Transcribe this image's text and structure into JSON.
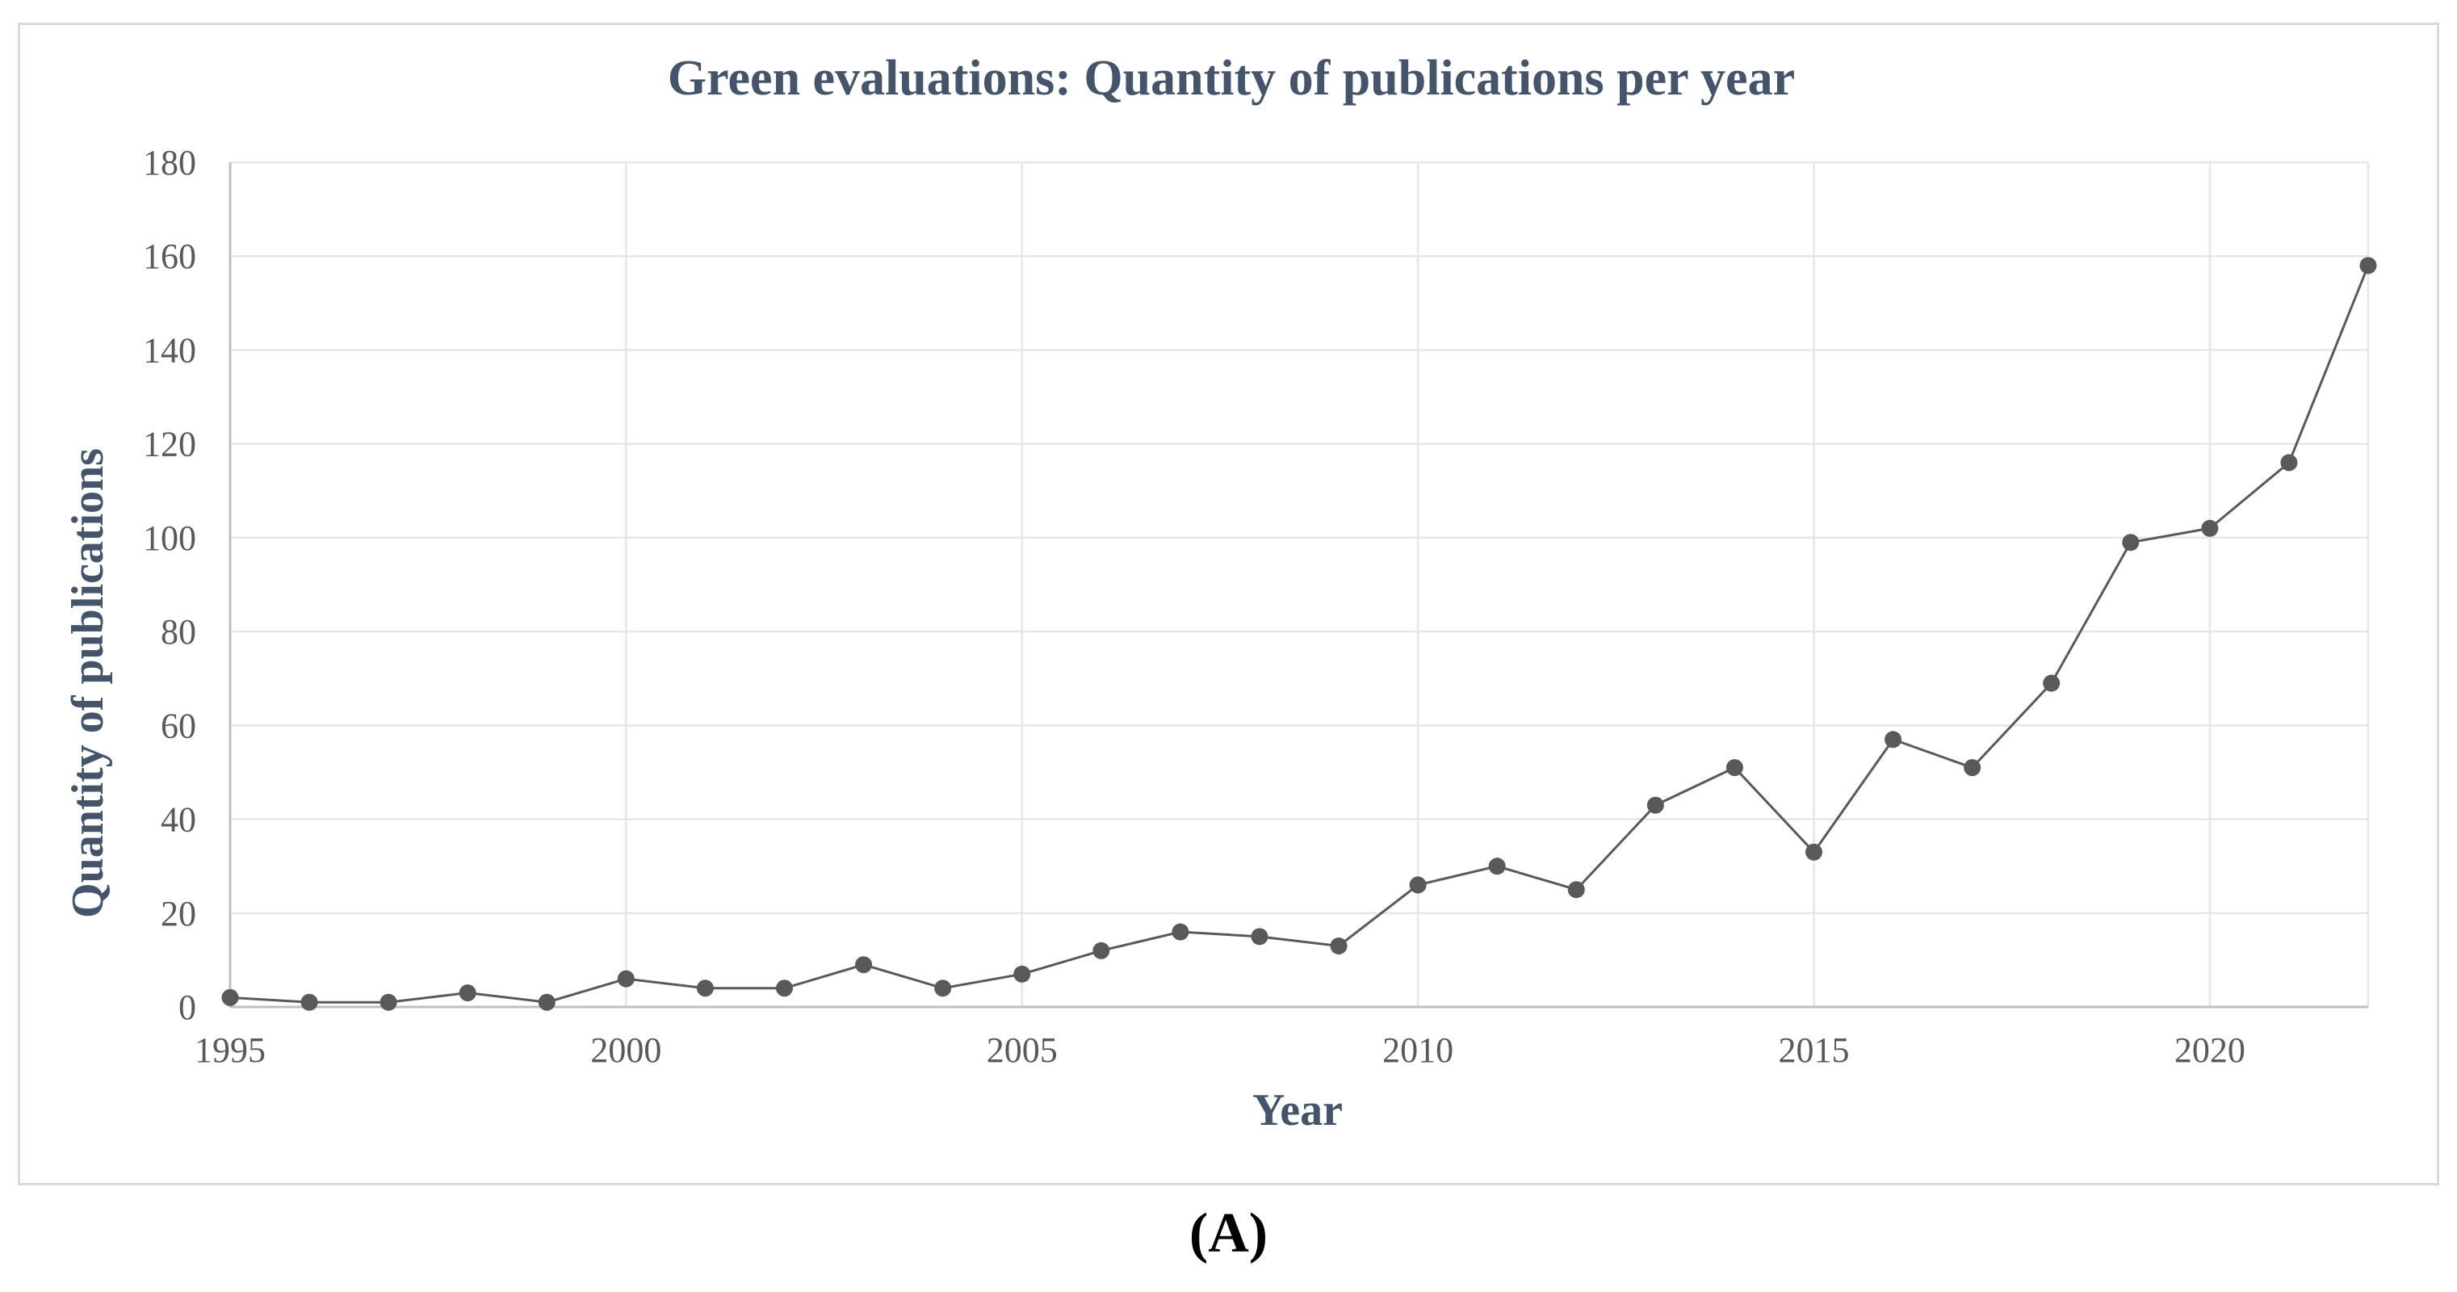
{
  "caption": "(A)",
  "chart_data": {
    "type": "line",
    "title": "Green evaluations: Quantity of publications per year",
    "xlabel": "Year",
    "ylabel": "Quantity of publications",
    "x": [
      1995,
      1996,
      1997,
      1998,
      1999,
      2000,
      2001,
      2002,
      2003,
      2004,
      2005,
      2006,
      2007,
      2008,
      2009,
      2010,
      2011,
      2012,
      2013,
      2014,
      2015,
      2016,
      2017,
      2018,
      2019,
      2020,
      2021,
      2022
    ],
    "series": [
      {
        "name": "Quantity of publications",
        "values": [
          2,
          1,
          1,
          3,
          1,
          6,
          4,
          4,
          9,
          4,
          7,
          12,
          16,
          15,
          13,
          26,
          30,
          25,
          43,
          51,
          33,
          57,
          51,
          69,
          99,
          102,
          116,
          158
        ]
      }
    ],
    "xlim": [
      1995,
      2022
    ],
    "ylim": [
      0,
      180
    ],
    "xticks": [
      "1995",
      "2000",
      "2005",
      "2010",
      "2015",
      "2020"
    ],
    "xtick_values": [
      1995,
      2000,
      2005,
      2010,
      2015,
      2020
    ],
    "yticks": [
      "0",
      "20",
      "40",
      "60",
      "80",
      "100",
      "120",
      "140",
      "160",
      "180"
    ],
    "ytick_values": [
      0,
      20,
      40,
      60,
      80,
      100,
      120,
      140,
      160,
      180
    ],
    "grid": true,
    "legend": "none",
    "colors": {
      "series": "#595959",
      "title": "#44546a",
      "grid": "#e6e6e6",
      "axis": "#bfbfbf",
      "ticks": "#595959"
    }
  }
}
